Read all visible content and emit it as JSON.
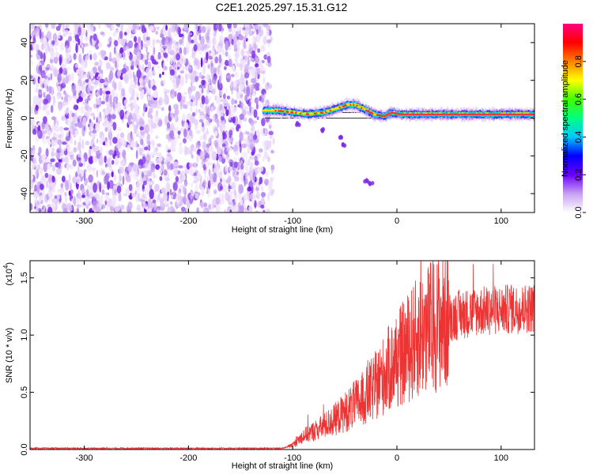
{
  "title": "C2E1.2025.297.15.31.G12",
  "chart_data": [
    {
      "type": "heatmap",
      "name": "spectrogram",
      "xlabel": "Height of straight line (km)",
      "ylabel": "Frequency (Hz)",
      "xlim": [
        -352,
        132
      ],
      "ylim": [
        -50,
        50
      ],
      "xticks": [
        -300,
        -200,
        -100,
        0,
        100
      ],
      "xtick_labels": [
        "-300",
        "-200",
        "-100",
        "0",
        "100"
      ],
      "yticks": [
        -40,
        -20,
        0,
        20,
        40
      ],
      "ytick_labels": [
        "-40",
        "-20",
        "0",
        "20",
        "40"
      ],
      "noise_region_x": [
        -352,
        -118
      ],
      "signal_start_x": -128,
      "trace_points": [
        {
          "x": -128,
          "y": 4
        },
        {
          "x": -115,
          "y": 4
        },
        {
          "x": -100,
          "y": 3
        },
        {
          "x": -85,
          "y": 2
        },
        {
          "x": -70,
          "y": 3
        },
        {
          "x": -58,
          "y": 5
        },
        {
          "x": -48,
          "y": 7
        },
        {
          "x": -40,
          "y": 7
        },
        {
          "x": -32,
          "y": 5
        },
        {
          "x": -22,
          "y": 2
        },
        {
          "x": -12,
          "y": 1
        },
        {
          "x": -5,
          "y": 3
        },
        {
          "x": 3,
          "y": 2
        },
        {
          "x": 15,
          "y": 2
        },
        {
          "x": 40,
          "y": 2
        },
        {
          "x": 70,
          "y": 2
        },
        {
          "x": 95,
          "y": 2
        },
        {
          "x": 110,
          "y": 2
        },
        {
          "x": 132,
          "y": 2
        }
      ],
      "secondary_branch": [
        {
          "x": -95,
          "y": -3
        },
        {
          "x": -70,
          "y": -6
        },
        {
          "x": -55,
          "y": -11
        },
        {
          "x": -50,
          "y": -14
        },
        {
          "x": -30,
          "y": -33
        },
        {
          "x": -25,
          "y": -35
        }
      ],
      "reference_line_y": [
        3,
        0
      ],
      "colorbar": {
        "label": "Normalized spectral amplitude",
        "range": [
          0.0,
          1.0
        ],
        "ticks": [
          0.0,
          0.2,
          0.4,
          0.6,
          0.8
        ],
        "tick_labels": [
          "0.0",
          "0.2",
          "0.4",
          "0.6",
          "0.8"
        ],
        "colors": [
          "#ffffff",
          "#c8a0f0",
          "#6a00ff",
          "#0000ff",
          "#00c8ff",
          "#00ff80",
          "#40ff00",
          "#ffff00",
          "#ff8000",
          "#ff0000",
          "#ff0080"
        ]
      }
    },
    {
      "type": "line",
      "name": "snr",
      "xlabel": "Height of straight line (km)",
      "ylabel": "SNR (10 * v/v)",
      "yscale_label": "(x10",
      "yscale_exp": "4",
      "xlim": [
        -352,
        132
      ],
      "ylim": [
        0,
        1.65
      ],
      "xticks": [
        -300,
        -200,
        -100,
        0,
        100
      ],
      "xtick_labels": [
        "-300",
        "-200",
        "-100",
        "0",
        "100"
      ],
      "yticks": [
        0.0,
        0.5,
        1.0,
        1.5
      ],
      "ytick_labels": [
        "0.0",
        "0.5",
        "1.0",
        "1.5"
      ],
      "color": "#ee3333",
      "envelope": [
        {
          "x": -352,
          "y": 0.01
        },
        {
          "x": -110,
          "y": 0.01
        },
        {
          "x": -100,
          "y": 0.04
        },
        {
          "x": -90,
          "y": 0.12
        },
        {
          "x": -75,
          "y": 0.18
        },
        {
          "x": -60,
          "y": 0.26
        },
        {
          "x": -45,
          "y": 0.36
        },
        {
          "x": -30,
          "y": 0.46
        },
        {
          "x": -20,
          "y": 0.56
        },
        {
          "x": -10,
          "y": 0.68
        },
        {
          "x": 0,
          "y": 0.78
        },
        {
          "x": 10,
          "y": 0.88
        },
        {
          "x": 20,
          "y": 0.98
        },
        {
          "x": 30,
          "y": 1.06
        },
        {
          "x": 45,
          "y": 1.14
        },
        {
          "x": 60,
          "y": 1.18
        },
        {
          "x": 80,
          "y": 1.21
        },
        {
          "x": 100,
          "y": 1.22
        },
        {
          "x": 132,
          "y": 1.24
        }
      ]
    }
  ]
}
